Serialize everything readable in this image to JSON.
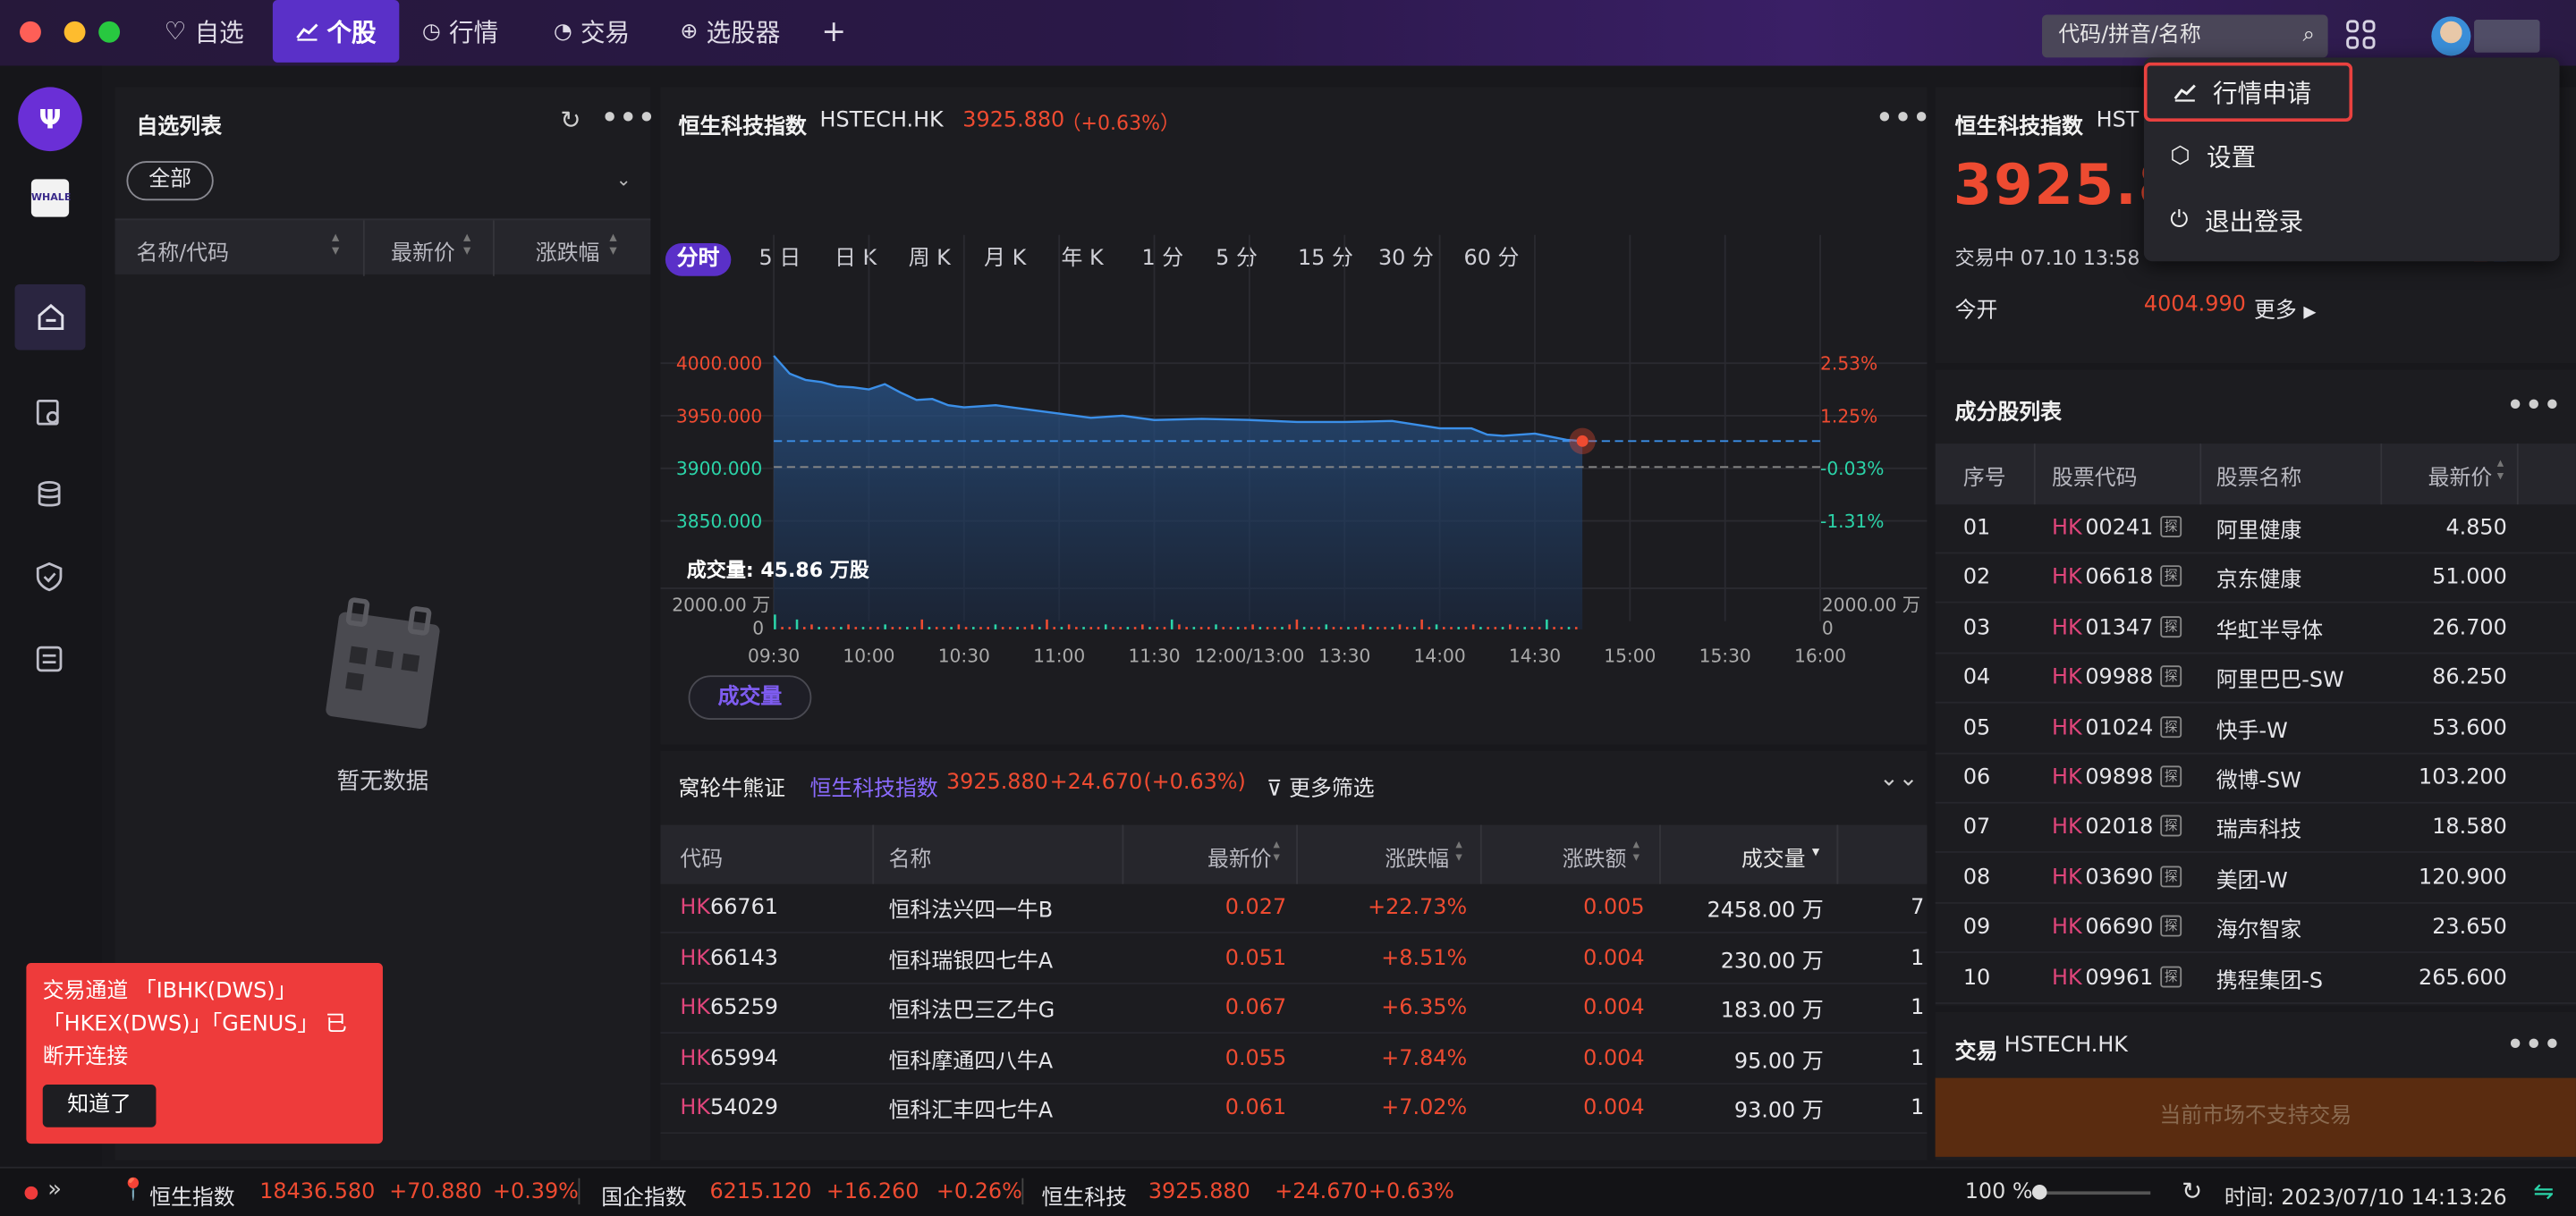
{
  "topbar": {
    "tabs": [
      {
        "id": "watch",
        "icon": "heart-icon",
        "label": "自选",
        "active": false
      },
      {
        "id": "stock",
        "icon": "chart-line-icon",
        "label": "个股",
        "active": true
      },
      {
        "id": "market",
        "icon": "clock-icon",
        "label": "行情",
        "active": false
      },
      {
        "id": "trade",
        "icon": "pie-icon",
        "label": "交易",
        "active": false
      },
      {
        "id": "screener",
        "icon": "target-icon",
        "label": "选股器",
        "active": false
      }
    ],
    "add_label": "+",
    "search_placeholder": "代码/拼音/名称"
  },
  "user_menu": {
    "items": [
      {
        "icon": "chart-line-icon",
        "label": "行情申请",
        "highlighted": true
      },
      {
        "icon": "hexagon-settings-icon",
        "label": "设置",
        "highlighted": false
      },
      {
        "icon": "power-icon",
        "label": "退出登录",
        "highlighted": false
      }
    ]
  },
  "watchlist": {
    "title": "自选列表",
    "filter": "全部",
    "columns": [
      "名称/代码",
      "最新价",
      "涨跌幅"
    ],
    "empty_text": "暂无数据"
  },
  "chart_panel": {
    "name": "恒生科技指数",
    "code": "HSTECH.HK",
    "price": "3925.880",
    "change": "（+0.63%）",
    "periods": [
      "分时",
      "5 日",
      "日 K",
      "周 K",
      "月 K",
      "年 K",
      "1 分",
      "5 分",
      "15 分",
      "30 分",
      "60 分"
    ],
    "active_period": "分时",
    "volume_label": "成交量: 45.86 万股",
    "indicator_button": "成交量",
    "vol_axis_left": [
      "2000.00 万",
      "0"
    ],
    "vol_axis_right": [
      "2000.00 万",
      "0"
    ]
  },
  "chart_data": {
    "type": "line",
    "title": "恒生科技指数 HSTECH.HK",
    "x_ticks": [
      "09:30",
      "10:00",
      "10:30",
      "11:00",
      "11:30",
      "12:00/13:00",
      "13:30",
      "14:00",
      "14:30",
      "15:00",
      "15:30",
      "16:00"
    ],
    "y_ticks": [
      "4000.000",
      "3950.000",
      "3900.000",
      "3850.000"
    ],
    "y_right_ticks": [
      "2.53%",
      "1.25%",
      "-0.03%",
      "-1.31%"
    ],
    "ylim": [
      3800,
      4050
    ],
    "prev_close": 3901.21,
    "last": 3925.88,
    "series": [
      {
        "x": [
          0,
          5,
          10,
          15,
          20,
          25,
          30,
          35,
          40,
          45,
          50,
          55,
          60,
          70,
          80,
          90,
          100,
          110,
          120,
          135,
          150,
          165,
          180,
          195,
          210,
          220,
          225,
          230,
          240,
          250,
          255
        ],
        "values": [
          4007,
          3990,
          3984,
          3982,
          3978,
          3977,
          3975,
          3980,
          3972,
          3965,
          3966,
          3960,
          3958,
          3960,
          3956,
          3952,
          3948,
          3950,
          3946,
          3947,
          3946,
          3944,
          3944,
          3945,
          3938,
          3938,
          3932,
          3931,
          3933,
          3927,
          3925.88
        ]
      }
    ]
  },
  "warrants": {
    "title": "窝轮牛熊证",
    "index_name": "恒生科技指数",
    "index_price": "3925.880",
    "index_change": "+24.670",
    "index_pct": "(+0.63%)",
    "filter_label": "更多筛选",
    "columns": [
      "代码",
      "名称",
      "最新价",
      "涨跌幅",
      "涨跌额",
      "成交量"
    ],
    "rows": [
      {
        "market": "HK",
        "code": "66761",
        "name": "恒科法兴四一牛B",
        "price": "0.027",
        "pct": "+22.73%",
        "chg": "0.005",
        "vol": "2458.00 万",
        "extra": "7"
      },
      {
        "market": "HK",
        "code": "66143",
        "name": "恒科瑞银四七牛A",
        "price": "0.051",
        "pct": "+8.51%",
        "chg": "0.004",
        "vol": "230.00 万",
        "extra": "1"
      },
      {
        "market": "HK",
        "code": "65259",
        "name": "恒科法巴三乙牛G",
        "price": "0.067",
        "pct": "+6.35%",
        "chg": "0.004",
        "vol": "183.00 万",
        "extra": "1"
      },
      {
        "market": "HK",
        "code": "65994",
        "name": "恒科摩通四八牛A",
        "price": "0.055",
        "pct": "+7.84%",
        "chg": "0.004",
        "vol": "95.00 万",
        "extra": "1"
      },
      {
        "market": "HK",
        "code": "54029",
        "name": "恒科汇丰四七牛A",
        "price": "0.061",
        "pct": "+7.02%",
        "chg": "0.004",
        "vol": "93.00 万",
        "extra": "1"
      }
    ]
  },
  "quote": {
    "name": "恒生科技指数",
    "code_partial": "HST",
    "price_partial": "3925.8",
    "status": "交易中 07.10 13:58",
    "open_label": "今开",
    "open_value": "4004.990",
    "more": "更多"
  },
  "constituents": {
    "title": "成分股列表",
    "columns": [
      "序号",
      "股票代码",
      "股票名称",
      "最新价"
    ],
    "rows": [
      {
        "no": "01",
        "market": "HK",
        "code": "00241",
        "name": "阿里健康",
        "price": "4.850"
      },
      {
        "no": "02",
        "market": "HK",
        "code": "06618",
        "name": "京东健康",
        "price": "51.000"
      },
      {
        "no": "03",
        "market": "HK",
        "code": "01347",
        "name": "华虹半导体",
        "price": "26.700"
      },
      {
        "no": "04",
        "market": "HK",
        "code": "09988",
        "name": "阿里巴巴-SW",
        "price": "86.250"
      },
      {
        "no": "05",
        "market": "HK",
        "code": "01024",
        "name": "快手-W",
        "price": "53.600"
      },
      {
        "no": "06",
        "market": "HK",
        "code": "09898",
        "name": "微博-SW",
        "price": "103.200"
      },
      {
        "no": "07",
        "market": "HK",
        "code": "02018",
        "name": "瑞声科技",
        "price": "18.580"
      },
      {
        "no": "08",
        "market": "HK",
        "code": "03690",
        "name": "美团-W",
        "price": "120.900"
      },
      {
        "no": "09",
        "market": "HK",
        "code": "06690",
        "name": "海尔智家",
        "price": "23.650"
      },
      {
        "no": "10",
        "market": "HK",
        "code": "09961",
        "name": "携程集团-S",
        "price": "265.600"
      }
    ]
  },
  "trade_panel": {
    "title": "交易",
    "code": "HSTECH.HK",
    "button": "当前市场不支持交易"
  },
  "toast": {
    "message": "交易通道 「IBHK(DWS)」「HKEX(DWS)」「GENUS」 已断开连接",
    "button": "知道了"
  },
  "status_bar": {
    "indices": [
      {
        "name": "恒生指数",
        "price": "18436.580",
        "chg": "+70.880",
        "pct": "+0.39%"
      },
      {
        "name": "国企指数",
        "price": "6215.120",
        "chg": "+16.260",
        "pct": "+0.26%"
      },
      {
        "name": "恒生科技",
        "price": "3925.880",
        "chg": "+24.670",
        "pct": "+0.63%"
      }
    ],
    "zoom": "100 %",
    "time": "时间: 2023/07/10 14:13:26"
  },
  "colors": {
    "accent": "#5a30c8",
    "up": "#ee4b31",
    "down": "#2bd3a8",
    "line": "#3b8fe8"
  }
}
